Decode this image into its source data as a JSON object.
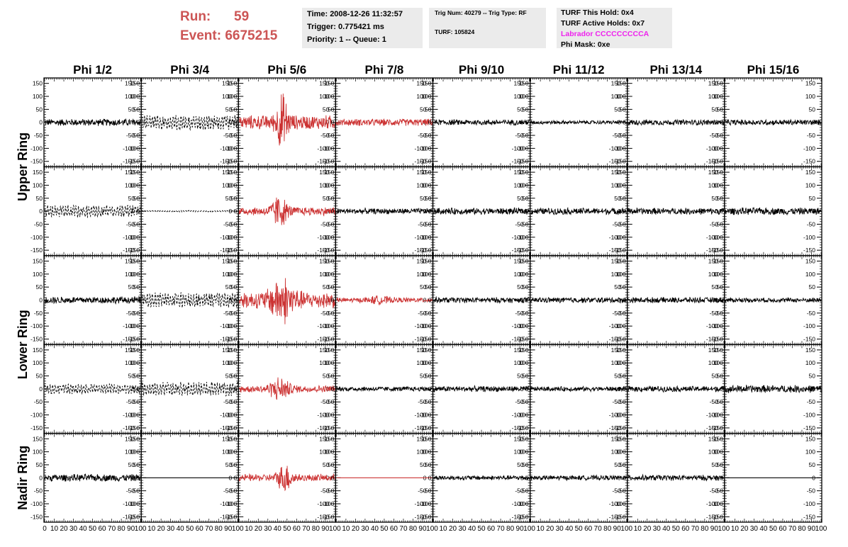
{
  "run_info": {
    "run_label": "Run:",
    "run_value": "59",
    "event_label": "Event:",
    "event_value": "6675215"
  },
  "time_box": {
    "time": "Time: 2008-12-26 11:32:57",
    "trigger": "Trigger: 0.775421 ms",
    "priority": "Priority: 1 -- Queue: 1"
  },
  "trig_box": {
    "trig_num": "Trig Num: 40279 -- Trig Type: RF",
    "turf": "TURF: 105824"
  },
  "turf_box": {
    "this_hold": "TURF This Hold: 0x4",
    "active_holds": "TURF Active Holds: 0x7",
    "labrador": "Labrador CCCCCCCCCA",
    "phi_mask": "Phi Mask: 0xe"
  },
  "colors": {
    "run_text": "#cc5555",
    "triggered_trace": "#cc3333",
    "normal_trace": "#000000",
    "labrador_text": "#ee22ee",
    "box_bg": "#ebebeb"
  },
  "chart_data": {
    "type": "line",
    "columns": [
      "Phi 1/2",
      "Phi 3/4",
      "Phi 5/6",
      "Phi 7/8",
      "Phi 9/10",
      "Phi 11/12",
      "Phi 13/14",
      "Phi 15/16"
    ],
    "rows": [
      "Upper Ring",
      "Upper Ring",
      "Lower Ring",
      "Lower Ring",
      "Nadir Ring"
    ],
    "row_labels": [
      {
        "label": "Upper Ring",
        "rows": [
          0,
          1
        ]
      },
      {
        "label": "Lower Ring",
        "rows": [
          2,
          3
        ]
      },
      {
        "label": "Nadir Ring",
        "rows": [
          4
        ]
      }
    ],
    "xlim": [
      0,
      100
    ],
    "ylim": [
      -160,
      160
    ],
    "y_ticks": [
      150,
      100,
      50,
      0,
      -50,
      -100,
      -150
    ],
    "y_tick_labels": [
      "150",
      "100",
      "50",
      "0",
      "-50",
      "-100",
      "-150"
    ],
    "x_ticks": [
      0,
      10,
      20,
      30,
      40,
      50,
      60,
      70,
      80,
      90,
      100
    ],
    "x_tick_labels": [
      "0",
      "10",
      "20",
      "30",
      "40",
      "50",
      "60",
      "70",
      "80",
      "90",
      "100"
    ],
    "panels": [
      [
        {
          "amp": 15,
          "style": "solid",
          "color": "#000000"
        },
        {
          "amp": 30,
          "style": "dashed",
          "color": "#000000"
        },
        {
          "amp": 30,
          "style": "solid",
          "color": "#cc3333",
          "burst": {
            "center": 45,
            "width": 6,
            "amp": 130
          }
        },
        {
          "amp": 15,
          "style": "solid",
          "color": "#cc3333",
          "burst": {
            "center": 48,
            "width": 15,
            "amp": 15
          }
        },
        {
          "amp": 12,
          "style": "solid",
          "color": "#000000"
        },
        {
          "amp": 8,
          "style": "solid",
          "color": "#000000"
        },
        {
          "amp": 12,
          "style": "solid",
          "color": "#000000"
        },
        {
          "amp": 12,
          "style": "solid",
          "color": "#000000"
        }
      ],
      [
        {
          "amp": 25,
          "style": "dashed",
          "color": "#000000"
        },
        {
          "amp": 3,
          "style": "dashed",
          "color": "#000000"
        },
        {
          "amp": 18,
          "style": "solid",
          "color": "#cc3333",
          "burst": {
            "center": 42,
            "width": 8,
            "amp": 75
          }
        },
        {
          "amp": 12,
          "style": "solid",
          "color": "#000000"
        },
        {
          "amp": 14,
          "style": "solid",
          "color": "#000000"
        },
        {
          "amp": 14,
          "style": "solid",
          "color": "#000000"
        },
        {
          "amp": 14,
          "style": "solid",
          "color": "#000000"
        },
        {
          "amp": 15,
          "style": "solid",
          "color": "#000000"
        }
      ],
      [
        {
          "amp": 15,
          "style": "solid",
          "color": "#000000"
        },
        {
          "amp": 30,
          "style": "dashed",
          "color": "#000000"
        },
        {
          "amp": 35,
          "style": "solid",
          "color": "#cc3333",
          "burst": {
            "center": 45,
            "width": 12,
            "amp": 110
          }
        },
        {
          "amp": 10,
          "style": "solid",
          "color": "#cc3333",
          "burst": {
            "center": 45,
            "width": 12,
            "amp": 20
          }
        },
        {
          "amp": 12,
          "style": "solid",
          "color": "#000000"
        },
        {
          "amp": 12,
          "style": "solid",
          "color": "#000000"
        },
        {
          "amp": 12,
          "style": "solid",
          "color": "#000000"
        },
        {
          "amp": 10,
          "style": "solid",
          "color": "#000000"
        }
      ],
      [
        {
          "amp": 20,
          "style": "dashed",
          "color": "#000000"
        },
        {
          "amp": 28,
          "style": "dashed",
          "color": "#000000"
        },
        {
          "amp": 15,
          "style": "solid",
          "color": "#cc3333",
          "burst": {
            "center": 42,
            "width": 10,
            "amp": 55
          }
        },
        {
          "amp": 10,
          "style": "solid",
          "color": "#000000"
        },
        {
          "amp": 12,
          "style": "solid",
          "color": "#000000"
        },
        {
          "amp": 10,
          "style": "solid",
          "color": "#000000"
        },
        {
          "amp": 12,
          "style": "solid",
          "color": "#000000"
        },
        {
          "amp": 16,
          "style": "solid",
          "color": "#000000"
        }
      ],
      [
        {
          "amp": 15,
          "style": "solid",
          "color": "#000000"
        },
        {
          "amp": 0,
          "style": "solid",
          "color": "#000000"
        },
        {
          "amp": 15,
          "style": "solid",
          "color": "#cc3333",
          "burst": {
            "center": 48,
            "width": 8,
            "amp": 65
          }
        },
        {
          "amp": 0,
          "style": "solid",
          "color": "#cc3333"
        },
        {
          "amp": 10,
          "style": "solid",
          "color": "#000000"
        },
        {
          "amp": 10,
          "style": "solid",
          "color": "#000000"
        },
        {
          "amp": 12,
          "style": "solid",
          "color": "#000000"
        },
        {
          "amp": 0,
          "style": "solid",
          "color": "#000000"
        }
      ]
    ]
  }
}
